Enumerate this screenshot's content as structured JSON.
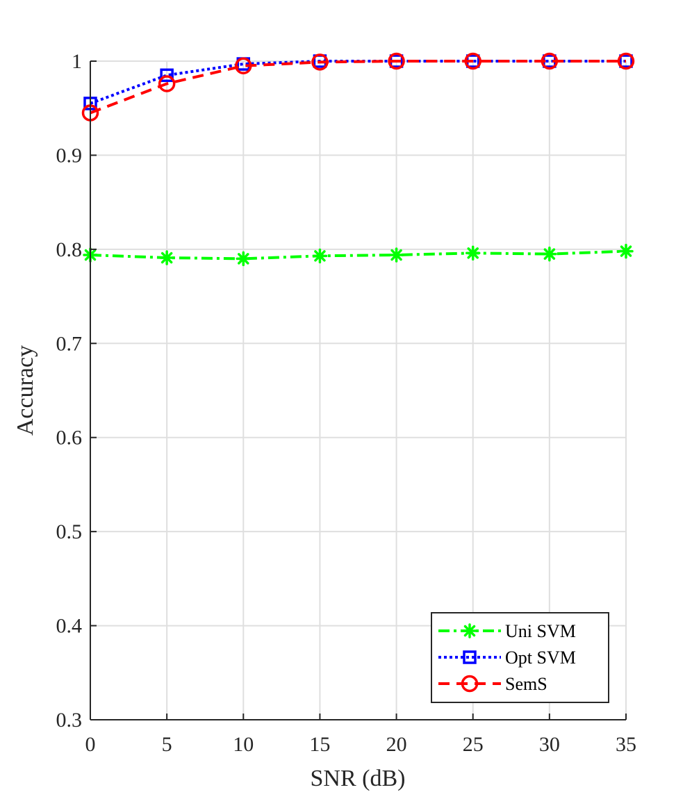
{
  "chart_data": {
    "type": "line",
    "title": "",
    "xlabel": "SNR (dB)",
    "ylabel": "Accuracy",
    "xlim": [
      0,
      35
    ],
    "ylim": [
      0.3,
      1
    ],
    "xticks": [
      0,
      5,
      10,
      15,
      20,
      25,
      30,
      35
    ],
    "xtick_labels": [
      "0",
      "5",
      "10",
      "15",
      "20",
      "25",
      "30",
      "35"
    ],
    "yticks": [
      0.3,
      0.4,
      0.5,
      0.6,
      0.7,
      0.8,
      0.9,
      1.0
    ],
    "ytick_labels": [
      "0.3",
      "0.4",
      "0.5",
      "0.6",
      "0.7",
      "0.8",
      "0.9",
      "1"
    ],
    "grid": true,
    "legend_position": "bottom-right",
    "x": [
      0,
      5,
      10,
      15,
      20,
      25,
      30,
      35
    ],
    "series": [
      {
        "name": "Uni SVM",
        "values": [
          0.794,
          0.791,
          0.79,
          0.793,
          0.794,
          0.796,
          0.795,
          0.798
        ],
        "color": "#00ff00",
        "line_style": "dash-dot",
        "marker": "asterisk"
      },
      {
        "name": "Opt SVM",
        "values": [
          0.955,
          0.985,
          0.997,
          1.0,
          1.0,
          1.0,
          1.0,
          1.0
        ],
        "color": "#0000ff",
        "line_style": "dotted",
        "marker": "square"
      },
      {
        "name": "SemS",
        "values": [
          0.945,
          0.976,
          0.995,
          0.999,
          1.0,
          1.0,
          1.0,
          1.0
        ],
        "color": "#ff0000",
        "line_style": "dashed",
        "marker": "circle"
      }
    ]
  }
}
